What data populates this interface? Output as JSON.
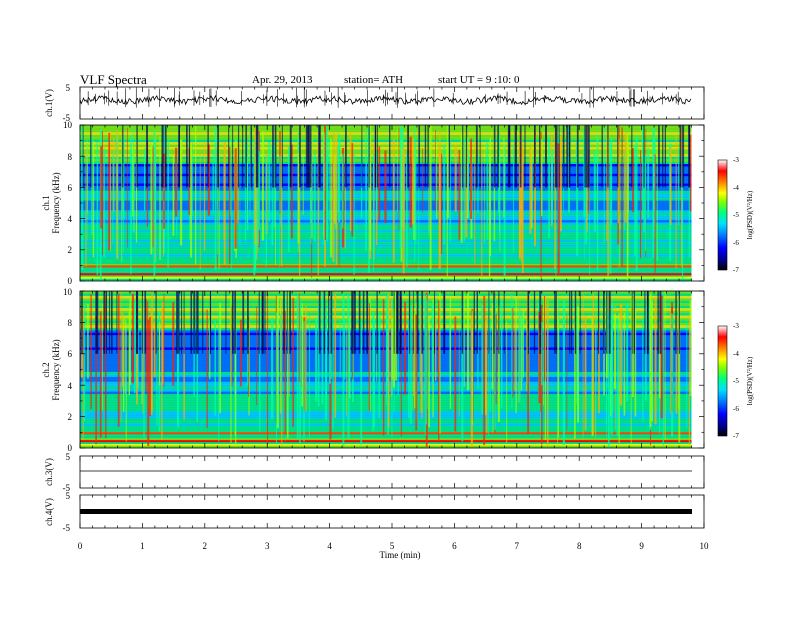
{
  "header": {
    "title": "VLF Spectra",
    "date": "Apr. 29, 2013",
    "station": "station= ATH",
    "start_ut": "start  UT  =   9  :10: 0"
  },
  "chart_data": {
    "type": "heatmap",
    "xlabel": "Time (min)",
    "x_range": [
      0,
      10
    ],
    "x_ticks": [
      "0",
      "1",
      "2",
      "3",
      "4",
      "5",
      "6",
      "7",
      "8",
      "9",
      "10"
    ],
    "data_end_min": 9.8,
    "panels": [
      {
        "id": "ch1-waveform",
        "type": "line",
        "ylabel": "ch.1(V)",
        "y_ticks": [
          "5",
          "-5"
        ],
        "y_range": [
          -5,
          5
        ],
        "color": "#000000"
      },
      {
        "id": "ch1-spectrogram",
        "type": "heatmap",
        "ylabel": "Frequency (kHz)",
        "channel_label": "ch.1",
        "y_range": [
          0,
          10
        ],
        "y_ticks": [
          "0",
          "2",
          "4",
          "6",
          "8",
          "10"
        ],
        "colorbar": {
          "label": "log(PSD)(V²/Hz)",
          "ticks": [
            "-3",
            "-4",
            "-5",
            "-6",
            "-7"
          ],
          "range": [
            -7,
            -3
          ]
        }
      },
      {
        "id": "ch2-spectrogram",
        "type": "heatmap",
        "ylabel": "Frequency (kHz)",
        "channel_label": "ch.2",
        "y_range": [
          0,
          10
        ],
        "y_ticks": [
          "0",
          "2",
          "4",
          "6",
          "8",
          "10"
        ],
        "colorbar": {
          "label": "log(PSD)(V²/Hz)",
          "ticks": [
            "-3",
            "-4",
            "-5",
            "-6",
            "-7"
          ],
          "range": [
            -7,
            -3
          ]
        }
      },
      {
        "id": "ch3-waveform",
        "type": "line",
        "ylabel": "ch.3(V)",
        "y_ticks": [
          "5",
          "-5"
        ],
        "y_range": [
          -5,
          5
        ],
        "color": "#000000"
      },
      {
        "id": "ch4-waveform",
        "type": "line",
        "ylabel": "ch.4(V)",
        "y_ticks": [
          "5",
          "-5"
        ],
        "y_range": [
          -5,
          5
        ],
        "color": "#000000"
      }
    ],
    "colormap": [
      "#000080",
      "#0000ff",
      "#0080ff",
      "#00e0ff",
      "#00ff80",
      "#80ff00",
      "#ffff00",
      "#ff8000",
      "#ff0000",
      "#ffffff"
    ]
  }
}
